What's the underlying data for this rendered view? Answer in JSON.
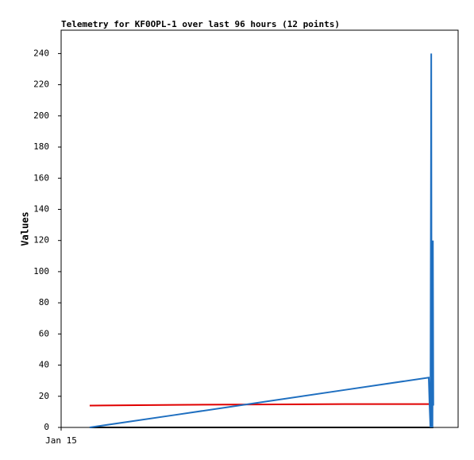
{
  "chart_data": {
    "type": "line",
    "title": "Telemetry for KF0OPL-1 over last 96 hours (12 points)",
    "y_label": "Values",
    "x": [
      6.9,
      27.5,
      68.4,
      88.9,
      89.1,
      89.3,
      89.5,
      89.6,
      89.7,
      89.8,
      89.9,
      90.0
    ],
    "xlim": [
      0,
      96
    ],
    "xticks": [
      {
        "value": 0,
        "label": "Jan 15"
      }
    ],
    "ylim": [
      0,
      255
    ],
    "yticks": [
      0,
      20,
      40,
      60,
      80,
      100,
      120,
      140,
      160,
      180,
      200,
      220,
      240
    ],
    "series": [
      {
        "color": "#000000",
        "values": [
          0,
          0,
          0,
          0,
          0,
          0,
          0,
          0,
          0,
          0,
          0,
          0
        ]
      },
      {
        "color": "#e00000",
        "values": [
          14,
          14.5,
          15,
          15,
          15,
          15,
          15,
          15,
          15,
          15,
          15,
          15
        ]
      },
      {
        "color": "#1f6fc0",
        "values": [
          0,
          8,
          24,
          32,
          14,
          0,
          240,
          0,
          120,
          0,
          120,
          14
        ]
      }
    ]
  }
}
